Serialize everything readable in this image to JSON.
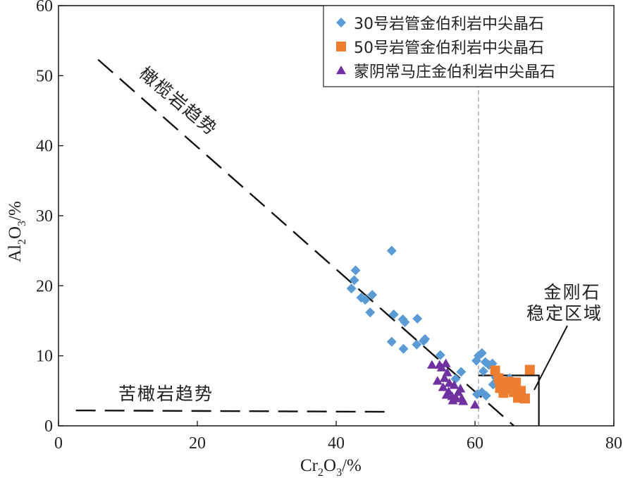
{
  "chart_data": {
    "type": "scatter",
    "title": "",
    "xlabel": {
      "base": "Cr",
      "sub1": "2",
      "mid": "O",
      "sub2": "3",
      "tail": "/%"
    },
    "ylabel": {
      "base": "Al",
      "sub1": "2",
      "mid": "O",
      "sub2": "3",
      "tail": "/%"
    },
    "xlim": [
      0,
      80
    ],
    "ylim": [
      0,
      60
    ],
    "xticks": [
      "0",
      "20",
      "40",
      "60",
      "80"
    ],
    "yticks": [
      "0",
      "10",
      "20",
      "30",
      "40",
      "50",
      "60"
    ],
    "xtick_values": [
      0,
      20,
      40,
      60,
      80
    ],
    "ytick_values": [
      0,
      10,
      20,
      30,
      40,
      50,
      60
    ],
    "series": [
      {
        "name": "30号岩管金伯利岩中尖晶石",
        "marker": "diamond",
        "color": "#5b9bd5",
        "points": [
          [
            48.0,
            25.0
          ],
          [
            42.8,
            22.2
          ],
          [
            42.6,
            20.8
          ],
          [
            42.2,
            19.6
          ],
          [
            45.2,
            18.7
          ],
          [
            43.6,
            18.3
          ],
          [
            44.2,
            18.0
          ],
          [
            44.9,
            16.2
          ],
          [
            48.3,
            15.9
          ],
          [
            49.6,
            15.2
          ],
          [
            51.7,
            15.3
          ],
          [
            49.9,
            14.8
          ],
          [
            52.8,
            12.4
          ],
          [
            51.6,
            11.6
          ],
          [
            52.6,
            12.1
          ],
          [
            48.0,
            12.0
          ],
          [
            49.7,
            11.0
          ],
          [
            55.0,
            10.1
          ],
          [
            58.0,
            7.7
          ],
          [
            57.2,
            6.7
          ],
          [
            60.2,
            9.3
          ],
          [
            60.5,
            10.0
          ],
          [
            61.0,
            10.4
          ],
          [
            61.5,
            9.1
          ],
          [
            62.0,
            8.7
          ],
          [
            62.5,
            8.9
          ],
          [
            61.2,
            7.8
          ],
          [
            63.0,
            6.9
          ],
          [
            62.6,
            5.9
          ],
          [
            61.0,
            4.8
          ],
          [
            61.6,
            4.3
          ],
          [
            60.3,
            4.5
          ],
          [
            65.0,
            6.8
          ],
          [
            64.8,
            5.9
          ],
          [
            66.5,
            4.3
          ],
          [
            65.6,
            5.1
          ],
          [
            67.0,
            3.9
          ],
          [
            66.2,
            4.6
          ]
        ]
      },
      {
        "name": "50号岩管金伯利岩中尖晶石",
        "marker": "square",
        "color": "#ed7d31",
        "points": [
          [
            62.9,
            7.9
          ],
          [
            67.9,
            8.0
          ],
          [
            63.8,
            6.0
          ],
          [
            64.6,
            5.2
          ],
          [
            65.2,
            5.7
          ],
          [
            65.9,
            6.2
          ],
          [
            66.6,
            5.0
          ],
          [
            63.6,
            5.4
          ],
          [
            64.1,
            4.7
          ],
          [
            65.6,
            4.8
          ],
          [
            66.2,
            4.0
          ],
          [
            67.2,
            3.9
          ],
          [
            64.8,
            6.3
          ],
          [
            63.4,
            6.8
          ]
        ]
      },
      {
        "name": "蒙阴常马庄金伯利岩中尖晶石",
        "marker": "triangle",
        "color": "#7030a0",
        "points": [
          [
            53.8,
            8.7
          ],
          [
            54.9,
            8.7
          ],
          [
            55.8,
            8.9
          ],
          [
            55.2,
            8.3
          ],
          [
            56.0,
            7.6
          ],
          [
            54.6,
            6.4
          ],
          [
            56.3,
            6.1
          ],
          [
            57.0,
            5.8
          ],
          [
            55.4,
            5.5
          ],
          [
            56.2,
            4.9
          ],
          [
            57.6,
            4.8
          ],
          [
            56.7,
            4.2
          ],
          [
            57.3,
            3.9
          ],
          [
            58.1,
            3.9
          ],
          [
            56.8,
            3.6
          ],
          [
            58.3,
            3.5
          ],
          [
            55.9,
            4.4
          ],
          [
            57.9,
            5.3
          ],
          [
            60.0,
            3.0
          ],
          [
            55.6,
            6.8
          ]
        ]
      }
    ],
    "reference_lines": [
      {
        "name": "olivine-trend",
        "style": "long-dash",
        "points": [
          [
            5.7,
            52.3
          ],
          [
            65.6,
            0.0
          ]
        ]
      },
      {
        "name": "pyroxenite-trend",
        "style": "long-dash",
        "points": [
          [
            2.5,
            2.2
          ],
          [
            48.0,
            2.0
          ]
        ]
      },
      {
        "name": "cr-threshold",
        "style": "short-dash",
        "color": "#999999",
        "points": [
          [
            60.5,
            60.0
          ],
          [
            60.5,
            0.0
          ]
        ]
      },
      {
        "name": "diamond-stability-field",
        "style": "solid",
        "points": [
          [
            60.5,
            7.2
          ],
          [
            69.2,
            7.2
          ],
          [
            69.2,
            0.0
          ]
        ]
      }
    ],
    "annotations": [
      {
        "key": "olivine",
        "text": "橄榄岩趋势"
      },
      {
        "key": "pyroxenite",
        "text": "苦橄岩趋势"
      },
      {
        "key": "diamond_line1",
        "text": "金刚石"
      },
      {
        "key": "diamond_line2",
        "text": "稳定区域"
      }
    ],
    "legend_position": "top-right"
  }
}
